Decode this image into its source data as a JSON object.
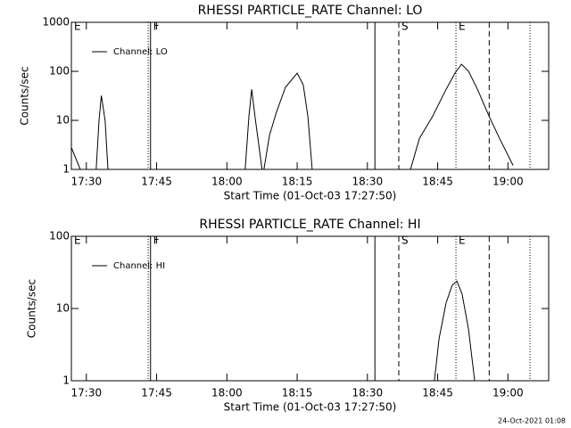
{
  "chart_data": [
    {
      "type": "line",
      "title": "RHESSI PARTICLE_RATE Channel: LO",
      "xlabel": "Start Time (01-Oct-03 17:27:50)",
      "ylabel": "Counts/sec",
      "x": [
        1046.8,
        1048.7,
        1049.5,
        1052.1,
        1052.7,
        1053.2,
        1054.0,
        1054.6,
        1055.5,
        1083.9,
        1084.7,
        1085.3,
        1086.0,
        1087.5,
        1087.9,
        1089.1,
        1090.6,
        1092.5,
        1095.0,
        1096.3,
        1097.3,
        1098.2,
        1110.0,
        1119.2,
        1121.1,
        1123.9,
        1126.8,
        1128.7,
        1130.1,
        1131.6,
        1133.5,
        1136.0,
        1138.2,
        1141.1
      ],
      "series": [
        {
          "name": "Channel: LO",
          "color": "#000000",
          "values": [
            2.8,
            1,
            null,
            1,
            10,
            32,
            10,
            1,
            null,
            1,
            12,
            43,
            12,
            1,
            1,
            5,
            15,
            47,
            92,
            53,
            12,
            1,
            null,
            1,
            4.3,
            12,
            43,
            92,
            140,
            100,
            43,
            12,
            4.3,
            1.2
          ]
        }
      ],
      "xlim": [
        1046.8,
        1148.7
      ],
      "ylim": [
        1,
        1000
      ],
      "log_y": true,
      "legend": "upper left",
      "xticks": [
        {
          "value": 1050,
          "label": "17:30"
        },
        {
          "value": 1065,
          "label": "17:45"
        },
        {
          "value": 1080,
          "label": "18:00"
        },
        {
          "value": 1095,
          "label": "18:15"
        },
        {
          "value": 1110,
          "label": "18:30"
        },
        {
          "value": 1125,
          "label": "18:45"
        },
        {
          "value": 1140,
          "label": "19:00"
        }
      ],
      "yticks": [
        1,
        10,
        100,
        1000
      ],
      "markers": [
        {
          "x": 1046.8,
          "style": "solid",
          "label": "E"
        },
        {
          "x": 1063.2,
          "style": "dotted"
        },
        {
          "x": 1063.7,
          "style": "solid",
          "label": "F"
        },
        {
          "x": 1111.6,
          "style": "solid"
        },
        {
          "x": 1116.7,
          "style": "dashed",
          "label": "S"
        },
        {
          "x": 1128.9,
          "style": "dotted",
          "label": "E"
        },
        {
          "x": 1136.0,
          "style": "dashed"
        },
        {
          "x": 1144.7,
          "style": "dotted"
        }
      ]
    },
    {
      "type": "line",
      "title": "RHESSI PARTICLE_RATE Channel: HI",
      "xlabel": "Start Time (01-Oct-03 17:27:50)",
      "ylabel": "Counts/sec",
      "x": [
        1124.3,
        1125.3,
        1126.8,
        1128.1,
        1129.1,
        1130.2,
        1131.6,
        1132.9
      ],
      "series": [
        {
          "name": "Channel: HI",
          "color": "#000000",
          "values": [
            1,
            3.8,
            12,
            21,
            24,
            16,
            5.1,
            1
          ]
        }
      ],
      "xlim": [
        1046.8,
        1148.7
      ],
      "ylim": [
        1,
        100
      ],
      "log_y": true,
      "legend": "upper left",
      "xticks": [
        {
          "value": 1050,
          "label": "17:30"
        },
        {
          "value": 1065,
          "label": "17:45"
        },
        {
          "value": 1080,
          "label": "18:00"
        },
        {
          "value": 1095,
          "label": "18:15"
        },
        {
          "value": 1110,
          "label": "18:30"
        },
        {
          "value": 1125,
          "label": "18:45"
        },
        {
          "value": 1140,
          "label": "19:00"
        }
      ],
      "yticks": [
        1,
        10,
        100
      ],
      "markers": [
        {
          "x": 1046.8,
          "style": "solid",
          "label": "E"
        },
        {
          "x": 1063.2,
          "style": "dotted"
        },
        {
          "x": 1063.7,
          "style": "solid",
          "label": "F"
        },
        {
          "x": 1111.6,
          "style": "solid"
        },
        {
          "x": 1116.7,
          "style": "dashed",
          "label": "S"
        },
        {
          "x": 1128.9,
          "style": "dotted",
          "label": "E"
        },
        {
          "x": 1136.0,
          "style": "dashed"
        },
        {
          "x": 1144.7,
          "style": "dotted"
        }
      ]
    }
  ],
  "timestamp": "24-Oct-2021 01:08"
}
